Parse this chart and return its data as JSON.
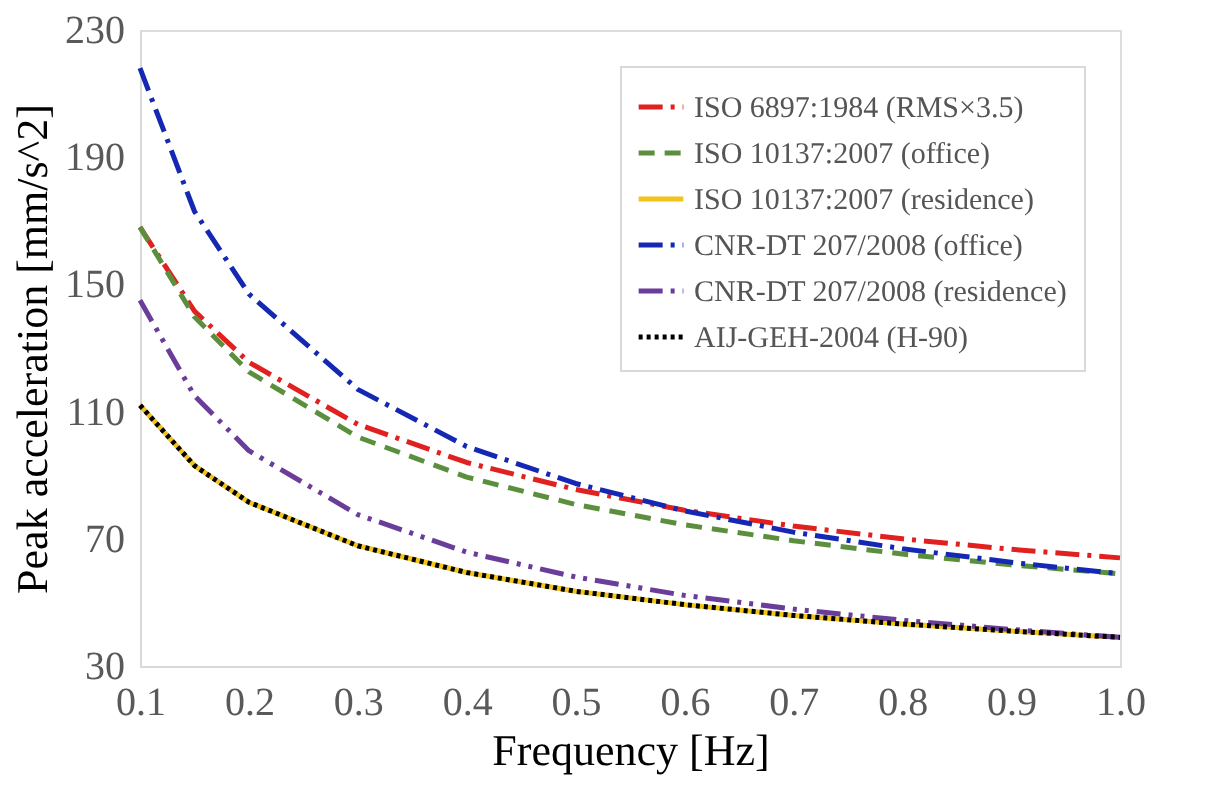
{
  "chart_data": {
    "type": "line",
    "xlabel": "Frequency [Hz]",
    "ylabel": "Peak acceleration [mm/s^2]",
    "x": [
      0.1,
      0.15,
      0.2,
      0.3,
      0.4,
      0.5,
      0.6,
      0.7,
      0.8,
      0.9,
      1.0
    ],
    "series": [
      {
        "name": "ISO 6897:1984 (RMS×3.5)",
        "color": "#e0211f",
        "line_style": "dashdot",
        "values": [
          168,
          141.6,
          125.5,
          106,
          94,
          85.5,
          79,
          74,
          70,
          66.7,
          64
        ]
      },
      {
        "name": "ISO 10137:2007 (office)",
        "color": "#5b8f3e",
        "line_style": "dashed",
        "values": [
          168,
          139.8,
          122.5,
          102,
          89.4,
          80.8,
          74.4,
          69.4,
          65.2,
          61.8,
          59
        ]
      },
      {
        "name": "ISO 10137:2007 (residence)",
        "color": "#f2c318",
        "line_style": "solid",
        "values": [
          112,
          93,
          81.5,
          67.8,
          59.4,
          53.5,
          49.3,
          45.9,
          43.2,
          41,
          39
        ]
      },
      {
        "name": "CNR-DT 207/2008 (office)",
        "color": "#1428b4",
        "line_style": "dashdot",
        "values": [
          218,
          173,
          147,
          117,
          99,
          87.4,
          78.8,
          72.1,
          66.9,
          62.6,
          59
        ]
      },
      {
        "name": "CNR-DT 207/2008 (residence)",
        "color": "#6a3d9a",
        "line_style": "dashdotdot",
        "values": [
          145,
          115,
          97.7,
          77.6,
          65.8,
          58,
          52.2,
          47.9,
          44.4,
          41.5,
          39
        ]
      },
      {
        "name": "AIJ-GEH-2004 (H-90)",
        "color": "#000000",
        "line_style": "dotted",
        "values": [
          112,
          93,
          81.5,
          67.8,
          59.4,
          53.5,
          49.3,
          45.9,
          43.2,
          41,
          39
        ]
      }
    ],
    "xlim": [
      0.1,
      1.0
    ],
    "xticks": [
      {
        "value": 0.1,
        "label": "0.1"
      },
      {
        "value": 0.2,
        "label": "0.2"
      },
      {
        "value": 0.3,
        "label": "0.3"
      },
      {
        "value": 0.4,
        "label": "0.4"
      },
      {
        "value": 0.5,
        "label": "0.5"
      },
      {
        "value": 0.6,
        "label": "0.6"
      },
      {
        "value": 0.7,
        "label": "0.7"
      },
      {
        "value": 0.8,
        "label": "0.8"
      },
      {
        "value": 0.9,
        "label": "0.9"
      },
      {
        "value": 1.0,
        "label": "1.0"
      }
    ],
    "ylim": [
      30,
      230
    ],
    "yticks": [
      30,
      70,
      110,
      150,
      190,
      230
    ],
    "grid": false,
    "legend": "top right",
    "marker": "none"
  }
}
